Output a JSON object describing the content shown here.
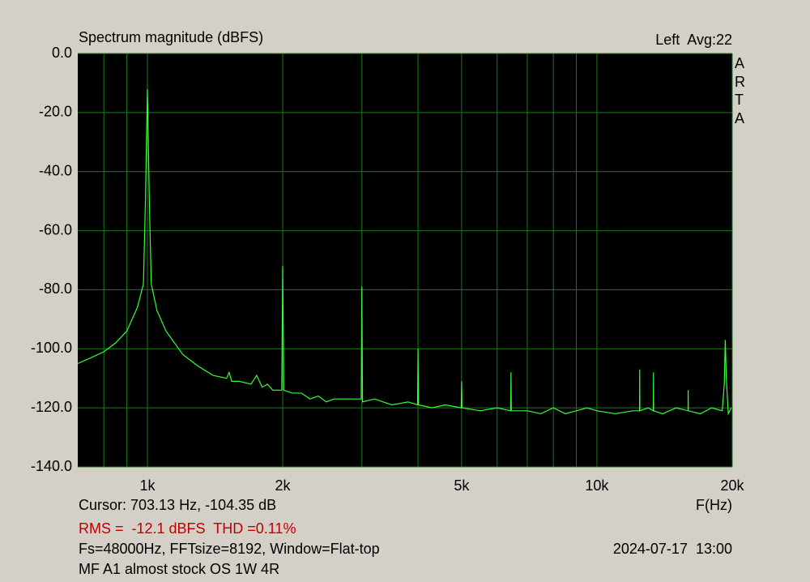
{
  "chart_data": {
    "type": "line",
    "title": "Spectrum magnitude (dBFS)",
    "channel": "Left  Avg:22",
    "watermark": "ARTA",
    "xlabel": "F(Hz)",
    "cursor": "Cursor: 703.13 Hz, -104.35 dB",
    "rms": "RMS =  -12.1 dBFS  THD =0.11%",
    "settings": "Fs=48000Hz, FFTsize=8192, Window=Flat-top",
    "date": "2024-07-17  13:00",
    "note": "MF A1 almost stock OS 1W 4R",
    "color": "#33ff33",
    "grid_color": "#1d7a1d",
    "xlog": true,
    "grid": true,
    "xlim": [
      700,
      20000
    ],
    "ylim": [
      -140,
      0
    ],
    "xticks": [
      {
        "value": 1000,
        "label": "1k"
      },
      {
        "value": 2000,
        "label": "2k"
      },
      {
        "value": 5000,
        "label": "5k"
      },
      {
        "value": 10000,
        "label": "10k"
      },
      {
        "value": 20000,
        "label": "20k"
      }
    ],
    "xminor": [
      800,
      900,
      3000,
      4000,
      6000,
      7000,
      8000,
      9000
    ],
    "yticks": [
      {
        "value": 0,
        "label": "0.0"
      },
      {
        "value": -20,
        "label": "-20.0"
      },
      {
        "value": -40,
        "label": "-40.0"
      },
      {
        "value": -60,
        "label": "-60.0"
      },
      {
        "value": -80,
        "label": "-80.0"
      },
      {
        "value": -100,
        "label": "-100.0"
      },
      {
        "value": -120,
        "label": "-120.0"
      },
      {
        "value": -140,
        "label": "-140.0"
      }
    ],
    "x": [
      700,
      750,
      800,
      850,
      900,
      950,
      980,
      990,
      1000,
      1010,
      1020,
      1050,
      1100,
      1200,
      1300,
      1400,
      1500,
      1520,
      1540,
      1600,
      1700,
      1750,
      1800,
      1850,
      1900,
      1990,
      2000,
      2010,
      2100,
      2200,
      2300,
      2400,
      2500,
      2600,
      2800,
      2990,
      3000,
      3010,
      3200,
      3500,
      3800,
      3990,
      4000,
      4010,
      4300,
      4600,
      4990,
      5000,
      5010,
      5500,
      6000,
      6430,
      6440,
      6450,
      7000,
      7500,
      8000,
      8500,
      9000,
      9500,
      10000,
      11000,
      12000,
      12440,
      12450,
      12460,
      13000,
      13350,
      13360,
      13370,
      14000,
      15000,
      15950,
      15960,
      15970,
      17000,
      18000,
      19000,
      19200,
      19300,
      19400,
      19600,
      19890
    ],
    "values": [
      -105,
      -103,
      -101,
      -98,
      -94,
      -86,
      -78,
      -50,
      -12,
      -50,
      -78,
      -87,
      -94,
      -102,
      -106,
      -109,
      -110,
      -108,
      -111,
      -111,
      -112,
      -109,
      -113,
      -112,
      -114,
      -114,
      -72,
      -114,
      -115,
      -115,
      -117,
      -116,
      -118,
      -117,
      -117,
      -117,
      -79,
      -118,
      -117,
      -119,
      -118,
      -119,
      -100,
      -119,
      -120,
      -119,
      -120,
      -111,
      -120,
      -121,
      -120,
      -121,
      -108,
      -121,
      -121,
      -122,
      -120,
      -122,
      -121,
      -120,
      -121,
      -122,
      -121,
      -121,
      -107,
      -121,
      -120,
      -121,
      -108,
      -121,
      -122,
      -120,
      -121,
      -114,
      -121,
      -122,
      -120,
      -121,
      -112,
      -97,
      -110,
      -122,
      -120
    ]
  }
}
